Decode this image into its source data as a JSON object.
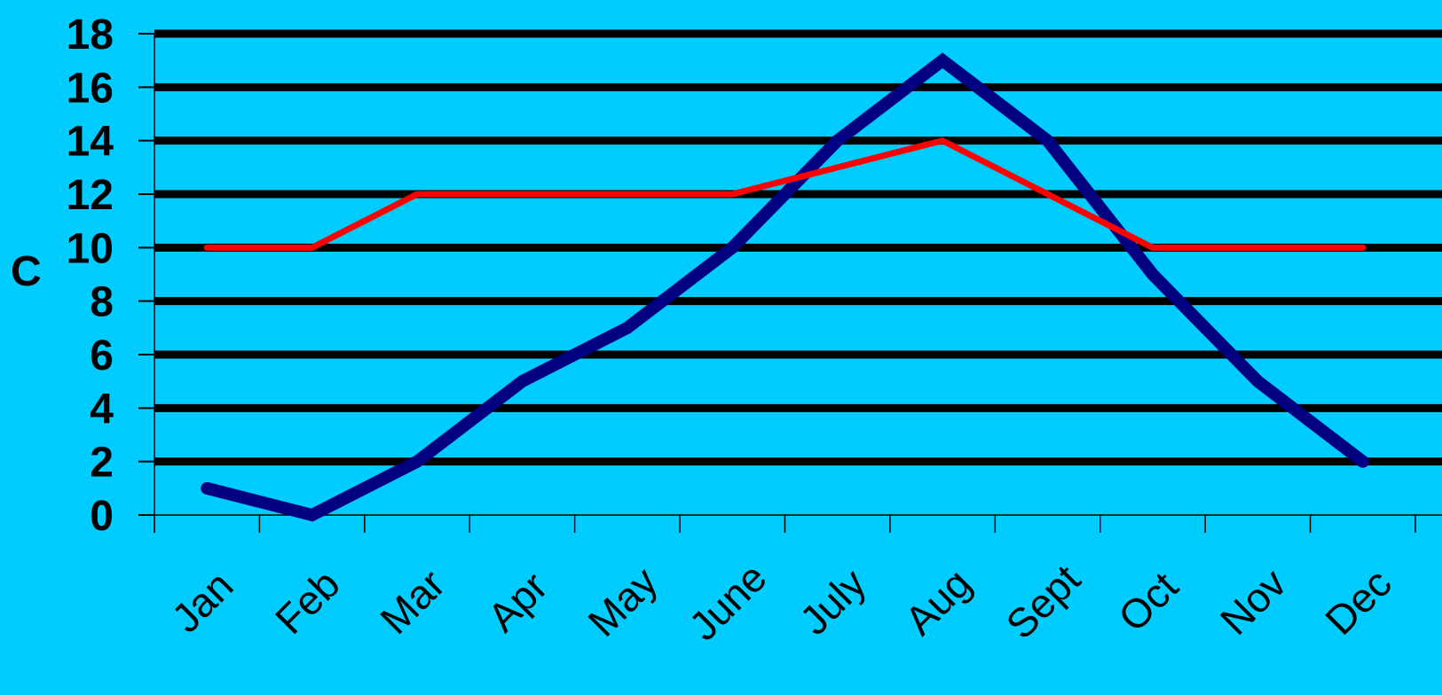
{
  "chart_data": {
    "type": "line",
    "title": "",
    "xlabel": "",
    "ylabel": "C",
    "ylim": [
      0,
      18
    ],
    "yticks": [
      "0",
      "2",
      "4",
      "6",
      "8",
      "10",
      "12",
      "14",
      "16",
      "18"
    ],
    "categories": [
      "Jan",
      "Feb",
      "Mar",
      "Apr",
      "May",
      "June",
      "July",
      "Aug",
      "Sept",
      "Oct",
      "Nov",
      "Dec"
    ],
    "grid": true,
    "legend": "none",
    "series": [
      {
        "color": "#000080",
        "values": [
          1,
          0,
          2,
          5,
          7,
          10,
          14,
          17,
          14,
          9,
          5,
          2
        ]
      },
      {
        "color": "#ff0000",
        "values": [
          10,
          10,
          12,
          12,
          12,
          12,
          13,
          14,
          12,
          10,
          10,
          10
        ]
      }
    ],
    "colors": {
      "background": "#00ccff",
      "gridline": "#000000",
      "text": "#000000"
    }
  }
}
